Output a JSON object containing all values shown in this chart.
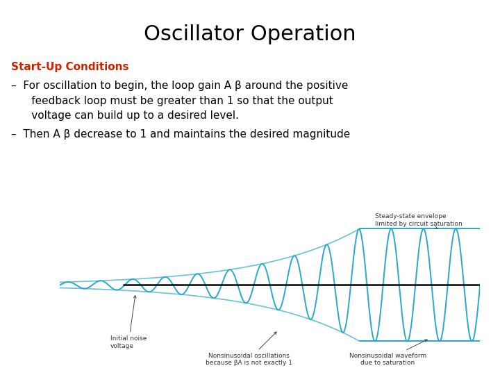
{
  "title": "Oscillator Operation",
  "title_fontsize": 22,
  "title_color": "#000000",
  "bg_color": "#ffffff",
  "subtitle_color": "#cc2200",
  "subtitle_text": "Start-Up Conditions",
  "subtitle_fontsize": 11,
  "bullet1_line1": "–  For oscillation to begin, the loop gain A β around the positive",
  "bullet1_line2": "      feedback loop must be greater than 1 so that the output",
  "bullet1_line3": "      voltage can build up to a desired level.",
  "bullet2_line1": "–  Then A β decrease to 1 and maintains the desired magnitude",
  "bullet_fontsize": 11,
  "wave_color": "#29a8c8",
  "axis_color": "#000000",
  "annotation_fontsize": 6.5,
  "diagram_label_initial_noise": "Initial noise\nvoltage",
  "diagram_label_nonsinusoidal": "Nonsinusoidal oscillations\nbecause βA is not exactly 1",
  "diagram_label_steady_state": "Steady-state envelope\nlimited by circuit saturation",
  "diagram_label_nonsinusoidal_waveform": "Nonsinusoidal waveform\ndue to saturation"
}
